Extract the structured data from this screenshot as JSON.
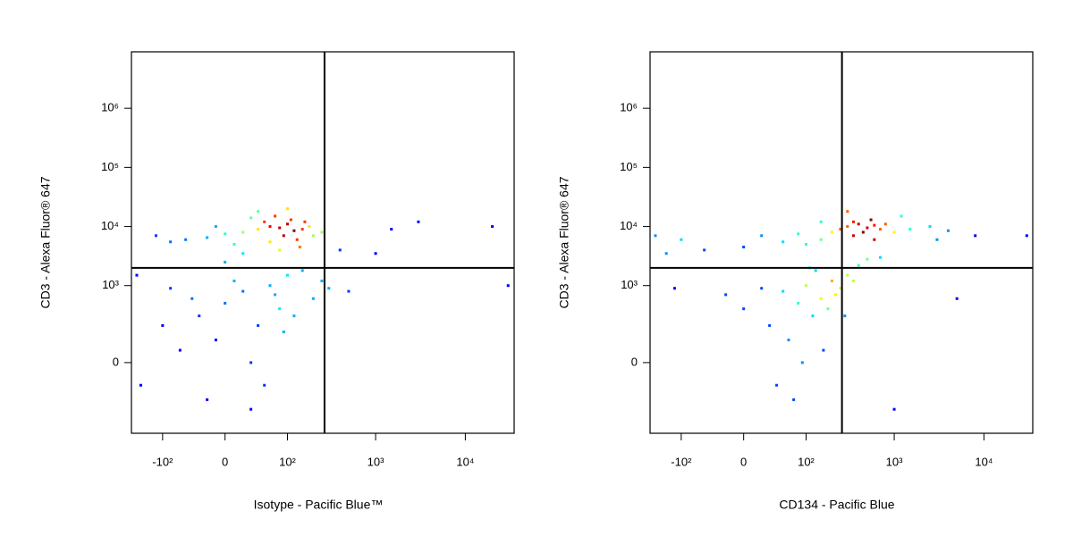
{
  "chart_data": [
    {
      "type": "scatter",
      "xscale": "biexponential",
      "yscale": "biexponential",
      "xlabel": "Isotype - Pacific Blue™",
      "ylabel": "CD3 - Alexa Fluor® 647",
      "xlim": [
        -230,
        35000
      ],
      "ylim": [
        -780,
        9000000
      ],
      "xticks": [
        {
          "value": -100,
          "label": "-10²"
        },
        0,
        {
          "value": 100,
          "label": "10²"
        },
        {
          "value": 1000,
          "label": "10³"
        },
        {
          "value": 10000,
          "label": "10⁴"
        }
      ],
      "yticks": [
        0,
        {
          "value": 1000,
          "label": "10³"
        },
        {
          "value": 10000,
          "label": "10⁴"
        },
        {
          "value": 100000,
          "label": "10⁵"
        },
        {
          "value": 1000000,
          "label": "10⁶"
        }
      ],
      "quadrant_gate": {
        "x": 268,
        "y": 2000
      },
      "x": [
        20,
        40,
        60,
        80,
        100,
        120,
        90,
        50,
        0,
        -20,
        30,
        70,
        110,
        150,
        180,
        200,
        10,
        -50,
        -80,
        -120,
        60,
        130,
        100,
        40,
        -10,
        250,
        80,
        20,
        140,
        160,
        0,
        20,
        -30,
        40,
        60,
        -10,
        30,
        -40,
        80,
        100,
        10,
        -60,
        50,
        -20,
        70,
        120,
        -80,
        0,
        150,
        200,
        250,
        300,
        -100,
        30,
        90,
        -200,
        500,
        1500,
        3000,
        20000,
        30000,
        1000,
        -180,
        400
      ],
      "values": [
        8000,
        9000,
        10000,
        9500,
        11000,
        8500,
        7000,
        12000,
        7500,
        6500,
        14000,
        15000,
        13000,
        9000,
        10000,
        7000,
        5000,
        6000,
        5500,
        7000,
        5500,
        6000,
        20000,
        18000,
        10000,
        8000,
        4000,
        3500,
        4500,
        12000,
        500,
        800,
        300,
        200,
        1000,
        100,
        0,
        600,
        400,
        1500,
        1200,
        50,
        -100,
        -200,
        700,
        300,
        900,
        2500,
        1800,
        600,
        1200,
        900,
        200,
        -300,
        150,
        1500,
        800,
        9000,
        12000,
        10000,
        1000,
        3500,
        -100,
        4000
      ]
    },
    {
      "type": "scatter",
      "xscale": "biexponential",
      "yscale": "biexponential",
      "xlabel": "CD134 - Pacific Blue",
      "ylabel": "CD3 - Alexa Fluor® 647",
      "xlim": [
        -230,
        35000
      ],
      "ylim": [
        -780,
        9000000
      ],
      "xticks": [
        {
          "value": -100,
          "label": "-10²"
        },
        0,
        {
          "value": 100,
          "label": "10²"
        },
        {
          "value": 1000,
          "label": "10³"
        },
        {
          "value": 10000,
          "label": "10⁴"
        }
      ],
      "yticks": [
        0,
        {
          "value": 1000,
          "label": "10³"
        },
        {
          "value": 10000,
          "label": "10⁴"
        },
        {
          "value": 100000,
          "label": "10⁵"
        },
        {
          "value": 1000000,
          "label": "10⁶"
        }
      ],
      "quadrant_gate": {
        "x": 260,
        "y": 2000
      },
      "x": [
        300,
        400,
        500,
        350,
        450,
        600,
        700,
        250,
        200,
        800,
        550,
        350,
        1000,
        1500,
        2500,
        4000,
        8000,
        150,
        100,
        50,
        0,
        -50,
        20,
        80,
        1200,
        600,
        300,
        150,
        3000,
        -100,
        50,
        80,
        100,
        120,
        150,
        30,
        60,
        200,
        90,
        40,
        180,
        250,
        300,
        400,
        500,
        0,
        -20,
        130,
        220,
        70,
        350,
        110,
        160,
        20,
        280,
        -150,
        -200,
        30000,
        5000,
        1000,
        -120,
        700
      ],
      "values": [
        10000,
        11000,
        9500,
        12000,
        8000,
        10500,
        9000,
        9000,
        8000,
        11000,
        13000,
        7000,
        8000,
        9000,
        10000,
        8500,
        7000,
        6000,
        5000,
        5500,
        4500,
        4000,
        7000,
        7500,
        15000,
        6000,
        18000,
        12000,
        6000,
        6000,
        800,
        500,
        1000,
        300,
        600,
        200,
        100,
        1200,
        0,
        -100,
        400,
        900,
        1500,
        2200,
        2800,
        400,
        700,
        1800,
        700,
        -200,
        1200,
        2000,
        50,
        900,
        300,
        3500,
        7000,
        7000,
        600,
        -300,
        900,
        3000
      ]
    }
  ]
}
